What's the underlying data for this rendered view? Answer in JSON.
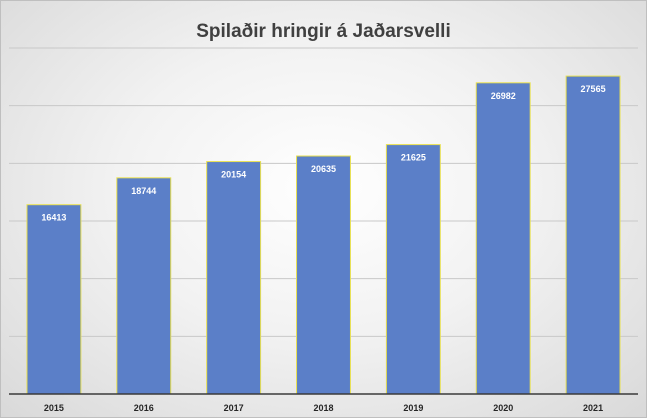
{
  "chart_data": {
    "type": "bar",
    "title": "Spilaðir hringir á Jaðarsvelli",
    "categories": [
      "2015",
      "2016",
      "2017",
      "2018",
      "2019",
      "2020",
      "2021"
    ],
    "values": [
      16413,
      18744,
      20154,
      20635,
      21625,
      26982,
      27565
    ],
    "ylim": [
      0,
      30000
    ],
    "grid": true,
    "legend": "none",
    "colors": {
      "bar_fill": "#5b7fc8",
      "bar_stroke": "#e8e050",
      "gridline": "#c8c8c8",
      "axis": "#3a3a3a"
    }
  }
}
